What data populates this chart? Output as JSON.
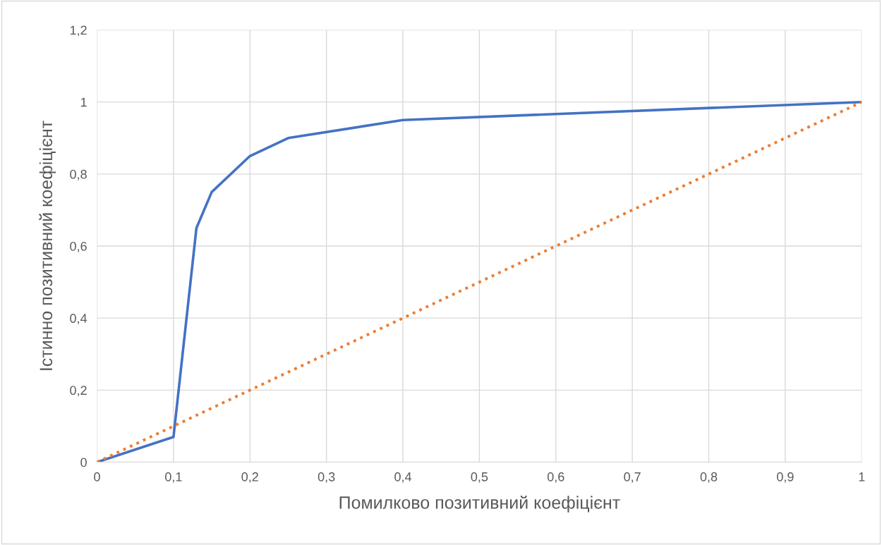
{
  "chart_data": {
    "type": "line",
    "xlabel": "Помилково позитивний коефіцієнт",
    "ylabel": "Істинно позитивний коефіцієнт",
    "series": [
      {
        "color": "#4472c4",
        "line_style": "solid",
        "x": [
          0,
          0.1,
          0.13,
          0.15,
          0.2,
          0.25,
          0.4,
          1
        ],
        "values": [
          0,
          0.07,
          0.65,
          0.75,
          0.85,
          0.9,
          0.95,
          1
        ]
      },
      {
        "color": "#ed7d31",
        "line_style": "dotted",
        "x": [
          0,
          1
        ],
        "values": [
          0,
          1
        ]
      }
    ],
    "xlim": [
      0,
      1
    ],
    "xticks": [
      0,
      {
        "value": 0.1,
        "label": "0,1"
      },
      {
        "value": 0.2,
        "label": "0,2"
      },
      {
        "value": 0.3,
        "label": "0,3"
      },
      {
        "value": 0.4,
        "label": "0,4"
      },
      {
        "value": 0.5,
        "label": "0,5"
      },
      {
        "value": 0.6,
        "label": "0,6"
      },
      {
        "value": 0.7,
        "label": "0,7"
      },
      {
        "value": 0.8,
        "label": "0,8"
      },
      {
        "value": 0.9,
        "label": "0,9"
      },
      1
    ],
    "ylim": [
      0,
      1.2
    ],
    "yticks": [
      0,
      {
        "value": 0.2,
        "label": "0,2"
      },
      {
        "value": 0.4,
        "label": "0,4"
      },
      {
        "value": 0.6,
        "label": "0,6"
      },
      {
        "value": 0.8,
        "label": "0,8"
      },
      1,
      {
        "value": 1.2,
        "label": "1,2"
      }
    ],
    "grid": true,
    "legend": false,
    "marker": "none"
  }
}
